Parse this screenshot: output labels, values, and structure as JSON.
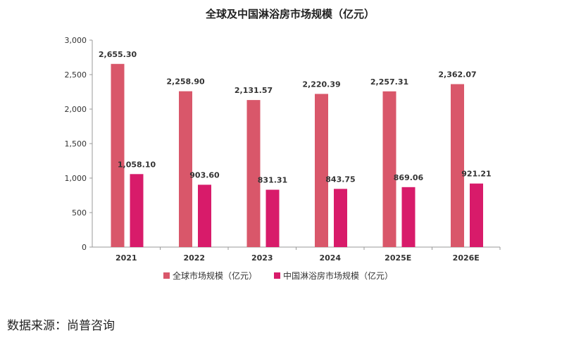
{
  "chart_data": {
    "type": "bar",
    "title": "全球及中国淋浴房市场规模（亿元）",
    "categories": [
      "2021",
      "2022",
      "2023",
      "2024",
      "2025E",
      "2026E"
    ],
    "series": [
      {
        "name": "全球市场规模（亿元）",
        "color": "#d9576a",
        "values": [
          2655.3,
          2258.9,
          2131.57,
          2220.39,
          2257.31,
          2362.07
        ],
        "labels": [
          "2,655.30",
          "2,258.90",
          "2,131.57",
          "2,220.39",
          "2,257.31",
          "2,362.07"
        ]
      },
      {
        "name": "中国淋浴房市场规模（亿元）",
        "color": "#d81b6a",
        "values": [
          1058.1,
          903.6,
          831.31,
          843.75,
          869.06,
          921.21
        ],
        "labels": [
          "1,058.10",
          "903.60",
          "831.31",
          "843.75",
          "869.06",
          "921.21"
        ]
      }
    ],
    "ylim": [
      0,
      3000
    ],
    "yticks": [
      0,
      500,
      1000,
      1500,
      2000,
      2500,
      3000
    ],
    "ytick_labels": [
      "0",
      "500",
      "1,000",
      "1,500",
      "2,000",
      "2,500",
      "3,000"
    ],
    "legend_position": "bottom",
    "grid": false
  },
  "source_text": "数据来源：尚普咨询"
}
